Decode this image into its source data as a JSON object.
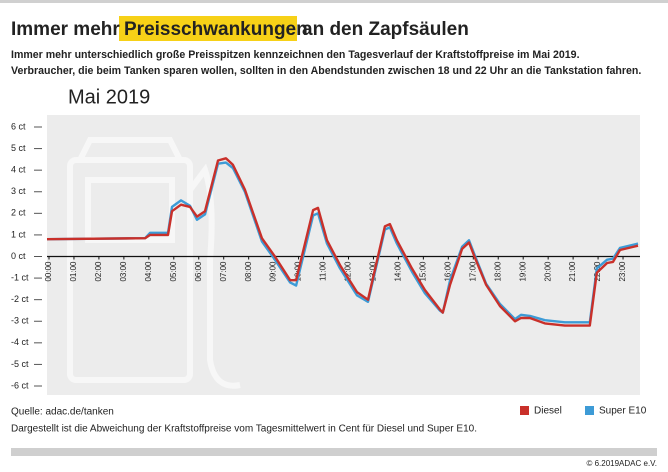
{
  "chart_data": {
    "type": "line",
    "title_before": "Immer mehr",
    "title_highlight": "Preisschwankungen",
    "title_after": "an den Zapfsäulen",
    "subtitle": [
      "Immer mehr unterschiedlich große Preisspitzen kennzeichnen den Tagesverlauf der Kraftstoffpreise im Mai 2019.",
      "Verbraucher, die beim Tanken sparen wollen, sollten in den Abendstunden zwischen 18 und 22 Uhr an die Tankstation fahren."
    ],
    "chart_label": "Mai 2019",
    "source": "Quelle: adac.de/tanken",
    "note": "Dargestellt ist die Abweichung der Kraftstoffpreise vom Tagesmittelwert in Cent für Diesel und Super E10.",
    "copyright": "© 6.2019ADAC e.V.",
    "x": [
      -0.08,
      3.85,
      4.05,
      4.77,
      4.93,
      5.29,
      5.65,
      5.93,
      6.25,
      6.77,
      7.09,
      7.37,
      7.85,
      8.53,
      9.05,
      9.66,
      9.9,
      10.58,
      10.78,
      11.14,
      11.66,
      12.34,
      12.78,
      13.46,
      13.66,
      13.94,
      14.54,
      15.06,
      15.66,
      15.78,
      16.07,
      16.55,
      16.83,
      17.03,
      17.51,
      18.07,
      18.67,
      18.91,
      19.27,
      19.87,
      20.67,
      21.67,
      21.95,
      22.36,
      22.6,
      22.88,
      23.6
    ],
    "xlim": [
      -0.08,
      23.68
    ],
    "xticks": [
      {
        "value": 0,
        "label": "00:00"
      },
      {
        "value": 1,
        "label": "01:00"
      },
      {
        "value": 2,
        "label": "02:00"
      },
      {
        "value": 3,
        "label": "03:00"
      },
      {
        "value": 4,
        "label": "04:00"
      },
      {
        "value": 5,
        "label": "05:00"
      },
      {
        "value": 6,
        "label": "06:00"
      },
      {
        "value": 7,
        "label": "07:00"
      },
      {
        "value": 8,
        "label": "08:00"
      },
      {
        "value": 9,
        "label": "09:00"
      },
      {
        "value": 10,
        "label": "10:00"
      },
      {
        "value": 11,
        "label": "11:00"
      },
      {
        "value": 12,
        "label": "12:00"
      },
      {
        "value": 13,
        "label": "13:00"
      },
      {
        "value": 14,
        "label": "14:00"
      },
      {
        "value": 15,
        "label": "15:00"
      },
      {
        "value": 16,
        "label": "16:00"
      },
      {
        "value": 17,
        "label": "17:00"
      },
      {
        "value": 18,
        "label": "18:00"
      },
      {
        "value": 19,
        "label": "19:00"
      },
      {
        "value": 20,
        "label": "20:00"
      },
      {
        "value": 21,
        "label": "21:00"
      },
      {
        "value": 22,
        "label": "22:00"
      },
      {
        "value": 23,
        "label": "23:00"
      }
    ],
    "ylim": [
      -6,
      6
    ],
    "yticks": [
      {
        "value": 6,
        "label": "6 ct"
      },
      {
        "value": 5,
        "label": "5 ct"
      },
      {
        "value": 4,
        "label": "4 ct"
      },
      {
        "value": 3,
        "label": "3 ct"
      },
      {
        "value": 2,
        "label": "2 ct"
      },
      {
        "value": 1,
        "label": "1 ct"
      },
      {
        "value": 0,
        "label": "0 ct"
      },
      {
        "value": -1,
        "label": "-1 ct"
      },
      {
        "value": -2,
        "label": "-2 ct"
      },
      {
        "value": -3,
        "label": "-3 ct"
      },
      {
        "value": -4,
        "label": "-4 ct"
      },
      {
        "value": -5,
        "label": "-5 ct"
      },
      {
        "value": -6,
        "label": "-6 ct"
      }
    ],
    "series": [
      {
        "name": "Super E10",
        "color": "#3d9bd6",
        "values": [
          0.8,
          0.85,
          1.1,
          1.1,
          2.3,
          2.6,
          2.35,
          1.7,
          1.95,
          4.3,
          4.35,
          4.1,
          3.0,
          0.7,
          -0.15,
          -1.2,
          -1.35,
          1.9,
          2.0,
          0.6,
          -0.55,
          -1.8,
          -2.1,
          1.25,
          1.35,
          0.6,
          -0.7,
          -1.7,
          -2.5,
          -2.6,
          -1.1,
          0.45,
          0.75,
          0.15,
          -1.25,
          -2.2,
          -2.9,
          -2.7,
          -2.75,
          -2.95,
          -3.05,
          -3.05,
          -0.55,
          -0.15,
          -0.1,
          0.4,
          0.6
        ]
      },
      {
        "name": "Diesel",
        "color": "#c9302a",
        "values": [
          0.8,
          0.85,
          1.0,
          1.0,
          2.1,
          2.4,
          2.3,
          1.85,
          2.1,
          4.45,
          4.55,
          4.25,
          3.1,
          0.85,
          0.0,
          -1.1,
          -1.1,
          2.15,
          2.25,
          0.75,
          -0.4,
          -1.65,
          -2.0,
          1.4,
          1.5,
          0.75,
          -0.55,
          -1.55,
          -2.45,
          -2.6,
          -1.3,
          0.35,
          0.65,
          0.05,
          -1.3,
          -2.3,
          -3.0,
          -2.85,
          -2.85,
          -3.1,
          -3.2,
          -3.2,
          -0.75,
          -0.3,
          -0.25,
          0.3,
          0.5
        ]
      }
    ]
  }
}
